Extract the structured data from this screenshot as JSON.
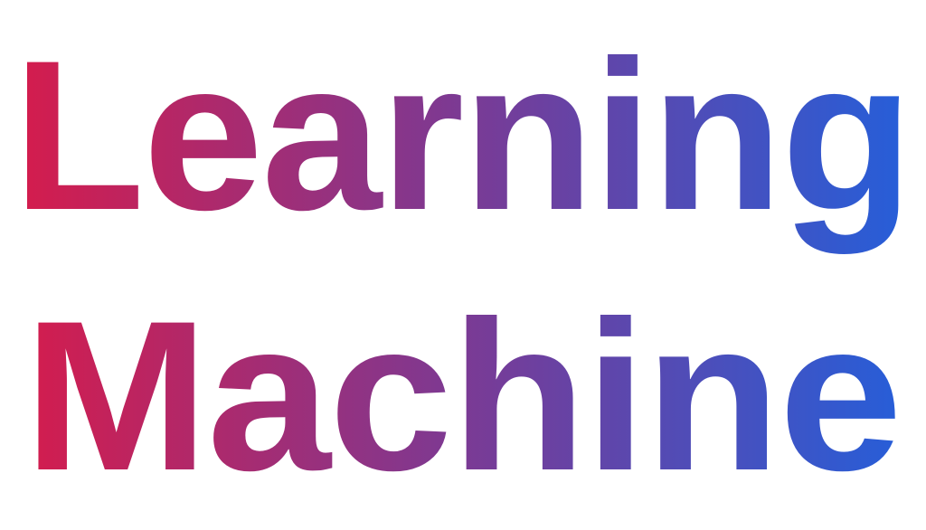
{
  "wordmark": {
    "line1": "Learning",
    "line2": "Machine"
  },
  "colors": {
    "gradient_start": "#D81B4A",
    "gradient_mid": "#7B3A94",
    "gradient_end": "#2260DC",
    "background": "#FFFFFF"
  }
}
